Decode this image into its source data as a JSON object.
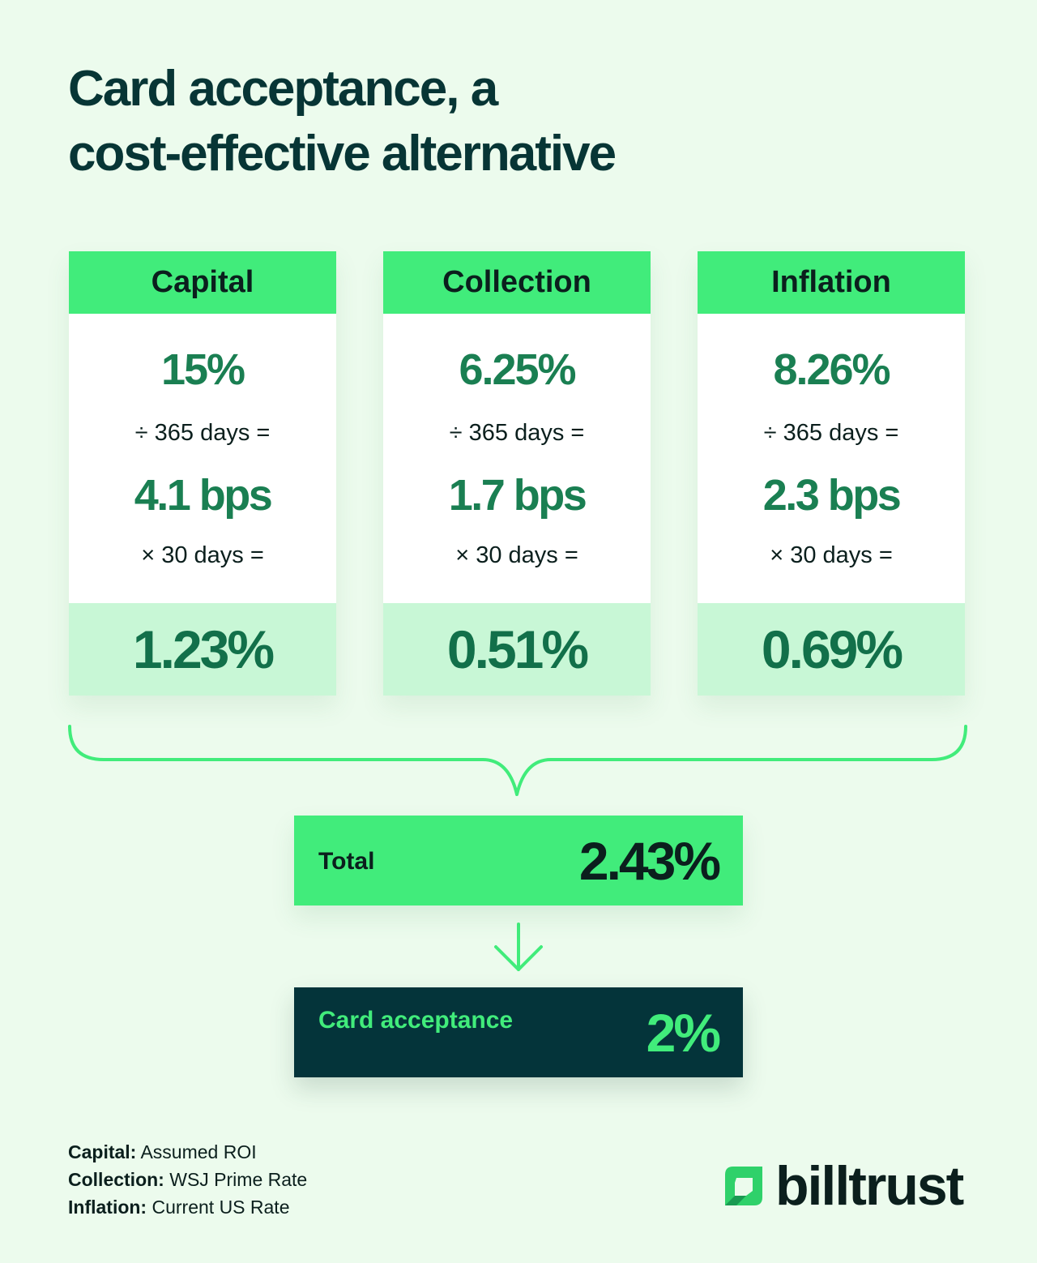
{
  "title": {
    "line1": "Card acceptance, a",
    "line2": "cost-effective alternative"
  },
  "cards": [
    {
      "heading": "Capital",
      "rate": "15%",
      "op1": "÷ 365 days =",
      "bps": "4.1 bps",
      "op2": "× 30 days =",
      "result": "1.23%"
    },
    {
      "heading": "Collection",
      "rate": "6.25%",
      "op1": "÷ 365 days =",
      "bps": "1.7 bps",
      "op2": "× 30 days =",
      "result": "0.51%"
    },
    {
      "heading": "Inflation",
      "rate": "8.26%",
      "op1": "÷ 365 days =",
      "bps": "2.3 bps",
      "op2": "× 30 days =",
      "result": "0.69%"
    }
  ],
  "total": {
    "label": "Total",
    "value": "2.43%"
  },
  "card_acceptance": {
    "label": "Card acceptance",
    "value": "2%"
  },
  "notes": [
    {
      "term": "Capital:",
      "desc": " Assumed ROI"
    },
    {
      "term": "Collection:",
      "desc": " WSJ Prime Rate"
    },
    {
      "term": "Inflation:",
      "desc": " Current US Rate"
    }
  ],
  "logo": {
    "text": "billtrust"
  },
  "colors": {
    "background": "#ecfbed",
    "accent_green": "#41ec7b",
    "dark_teal": "#04343a",
    "value_green": "#1a7f52",
    "result_bg": "#c8f7d6"
  }
}
